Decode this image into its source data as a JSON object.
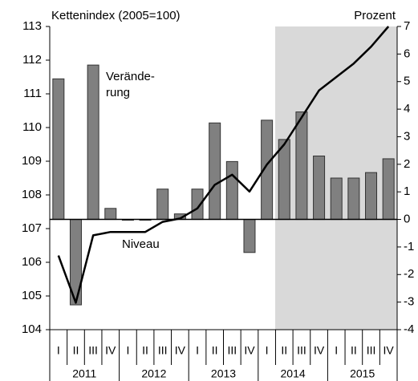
{
  "chart_data": {
    "type": "bar_line",
    "annotations": {
      "left_axis": "Kettenindex (2005=100)",
      "right_axis": "Prozent",
      "bars_1": "Verände-",
      "bars_2": "rung",
      "line": "Niveau"
    },
    "categories": [
      "I",
      "II",
      "III",
      "IV",
      "I",
      "II",
      "III",
      "IV",
      "I",
      "II",
      "III",
      "IV",
      "I",
      "II",
      "III",
      "IV",
      "I",
      "II",
      "III",
      "IV"
    ],
    "years": [
      "2011",
      "2012",
      "2013",
      "2014",
      "2015"
    ],
    "series": [
      {
        "name": "Veränderung",
        "color": "#808080",
        "axis": "y2",
        "values": [
          5.1,
          -3.1,
          5.6,
          0.4,
          0.0,
          0.0,
          1.1,
          0.2,
          1.1,
          3.5,
          2.1,
          -1.2,
          3.6,
          2.9,
          3.9,
          2.3,
          1.5,
          1.5,
          1.7,
          2.2
        ]
      },
      {
        "name": "Niveau",
        "color": "#000000",
        "axis": "y",
        "values": [
          106.2,
          104.8,
          106.8,
          106.9,
          106.9,
          106.9,
          107.2,
          107.3,
          107.6,
          108.3,
          108.6,
          108.1,
          108.9,
          109.5,
          110.3,
          111.1,
          111.5,
          111.9,
          112.4,
          113.0
        ]
      }
    ],
    "ylim": [
      104,
      113
    ],
    "yticks": [
      104,
      105,
      106,
      107,
      108,
      109,
      110,
      111,
      112,
      113
    ],
    "y2lim": [
      -4,
      7
    ],
    "y2ticks": [
      -4,
      -3,
      -2,
      -1,
      0,
      1,
      2,
      3,
      4,
      5,
      6,
      7
    ]
  }
}
